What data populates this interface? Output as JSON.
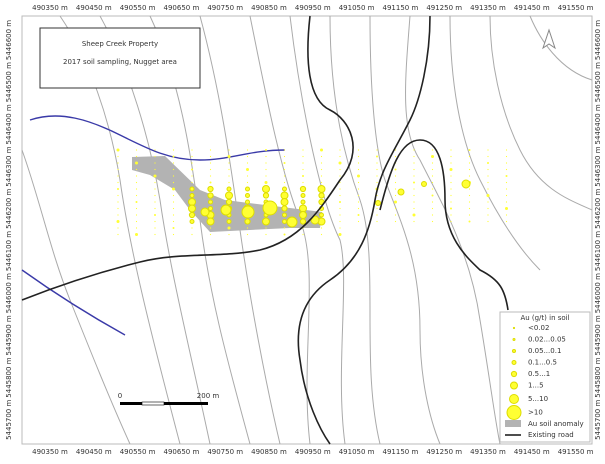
{
  "title": "Sheep Creek Property",
  "subtitle": "2017 soil sampling, Nugget area",
  "x_labels": [
    "490350 m",
    "490450 m",
    "490550 m",
    "490650 m",
    "490750 m",
    "490850 m",
    "490950 m",
    "491050 m",
    "491150 m",
    "491250 m",
    "491350 m",
    "491450 m",
    "491550 m"
  ],
  "y_labels": [
    "5446600 m",
    "5446500 m",
    "5446400 m",
    "5446300 m",
    "5446200 m",
    "5446100 m",
    "5446000 m",
    "5445900 m",
    "5445800 m",
    "5445700 m"
  ],
  "scale_bar": [
    "0",
    "200 m"
  ],
  "legend": {
    "heading": "Au  (g/t) in soil",
    "classes": [
      "<0.02",
      "0.02...0.05",
      "0.05...0.1",
      "0.1...0.5",
      "0.5...1",
      "1...5",
      "5...10",
      ">10"
    ],
    "anomaly": "Au soil anomaly",
    "road": "Existing road"
  }
}
